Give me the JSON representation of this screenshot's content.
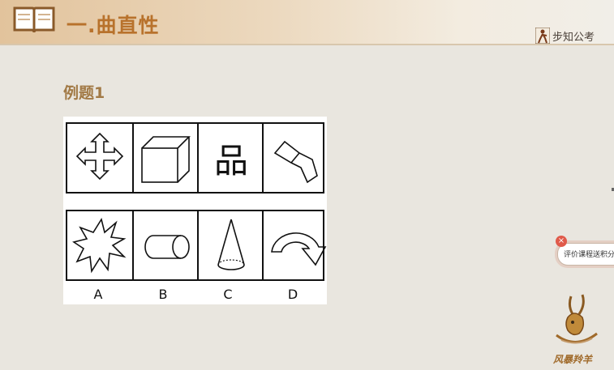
{
  "banner": {
    "section_title": "一.曲直性"
  },
  "brand": {
    "name": "步知公考"
  },
  "example": {
    "title": "例题1"
  },
  "puzzle": {
    "row1_text_glyph": "品",
    "options": [
      "A",
      "B",
      "C",
      "D"
    ]
  },
  "comment_badge": {
    "label": "评价课程送积分",
    "close_symbol": "×"
  },
  "mascot": {
    "label": "风暴羚羊"
  },
  "colors": {
    "accent": "#b8722c",
    "example_title": "#a27a46",
    "background": "#e9e6df"
  }
}
